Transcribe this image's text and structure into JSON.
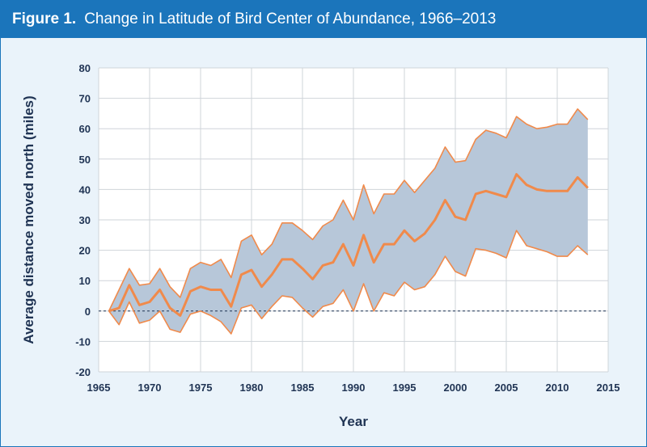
{
  "header": {
    "figure_label": "Figure 1.",
    "title": "Change in Latitude of Bird Center of Abundance, 1966–2013"
  },
  "colors": {
    "header_bg": "#1b75bb",
    "panel_bg": "#eaf3fa",
    "plot_bg": "#ffffff",
    "band_fill": "#b7c7d9",
    "line": "#f08a4b",
    "grid": "#cfd4da",
    "zero_line": "#1f3353",
    "text": "#1f3353"
  },
  "chart_data": {
    "type": "line",
    "title": "Change in Latitude of Bird Center of Abundance, 1966–2013",
    "xlabel": "Year",
    "ylabel": "Average distance moved north (miles)",
    "xlim": [
      1965,
      2015
    ],
    "ylim": [
      -20,
      80
    ],
    "xticks": [
      1965,
      1970,
      1975,
      1980,
      1985,
      1990,
      1995,
      2000,
      2005,
      2010,
      2015
    ],
    "yticks": [
      -20,
      -10,
      0,
      10,
      20,
      30,
      40,
      50,
      60,
      70,
      80
    ],
    "grid": true,
    "legend": "none",
    "x": [
      1966,
      1967,
      1968,
      1969,
      1970,
      1971,
      1972,
      1973,
      1974,
      1975,
      1976,
      1977,
      1978,
      1979,
      1980,
      1981,
      1982,
      1983,
      1984,
      1985,
      1986,
      1987,
      1988,
      1989,
      1990,
      1991,
      1992,
      1993,
      1994,
      1995,
      1996,
      1997,
      1998,
      1999,
      2000,
      2001,
      2002,
      2003,
      2004,
      2005,
      2006,
      2007,
      2008,
      2009,
      2010,
      2011,
      2012,
      2013
    ],
    "series": [
      {
        "role": "mean",
        "values": [
          0,
          1,
          8.5,
          2,
          3,
          7,
          1,
          -1.5,
          6.5,
          8,
          7,
          7,
          1.5,
          12,
          13.5,
          8,
          12,
          17,
          17,
          14,
          10.5,
          15,
          16,
          22,
          15,
          25,
          16,
          22,
          22,
          26.5,
          23,
          25.5,
          30,
          36.5,
          31,
          30,
          38.5,
          39.5,
          38.5,
          37.5,
          45,
          41.5,
          40,
          39.5,
          39.5,
          39.5,
          44,
          40.5
        ]
      },
      {
        "role": "upper",
        "values": [
          0,
          7,
          14,
          8.5,
          9,
          14,
          8,
          4.5,
          14,
          16,
          15,
          17,
          11,
          23,
          25,
          18.5,
          22,
          29,
          29,
          26.5,
          23.5,
          28,
          30,
          36.5,
          30,
          41.5,
          32,
          38.5,
          38.5,
          43,
          39,
          43,
          47,
          54,
          49,
          49.5,
          56.5,
          59.5,
          58.5,
          57,
          64,
          61.5,
          60,
          60.5,
          61.5,
          61.5,
          66.5,
          63
        ]
      },
      {
        "role": "lower",
        "values": [
          0,
          -4.5,
          3,
          -4,
          -3,
          0,
          -6,
          -7,
          -1,
          0,
          -1.5,
          -3.5,
          -7.5,
          1,
          2,
          -2.5,
          1.5,
          5,
          4.5,
          1,
          -2,
          1.5,
          2.5,
          7,
          0,
          9,
          0,
          6,
          5,
          9.5,
          7,
          8,
          12,
          18,
          13,
          11.5,
          20.5,
          20,
          19,
          17.5,
          26.5,
          21.5,
          20.5,
          19.5,
          18,
          18,
          21.5,
          18.5
        ]
      }
    ]
  }
}
